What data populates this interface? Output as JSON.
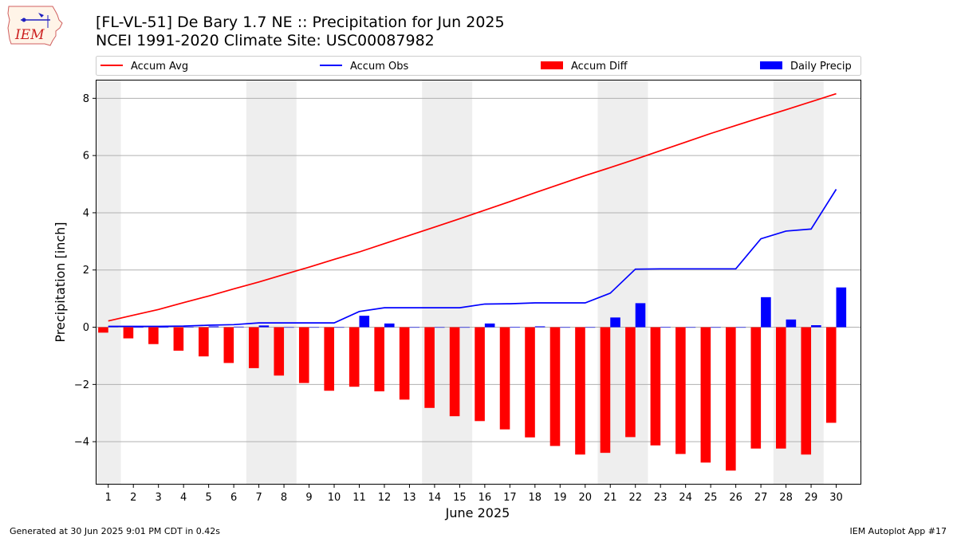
{
  "header": {
    "title_line1": "[FL-VL-51] De Bary 1.7 NE :: Precipitation for Jun 2025",
    "title_line2": "NCEI 1991-2020 Climate Site: USC00087982"
  },
  "logo": {
    "text": "IEM"
  },
  "footer": {
    "generated": "Generated at 30 Jun 2025 9:01 PM CDT in 0.42s",
    "app": "IEM Autoplot App #17"
  },
  "chart_data": {
    "type": "bar",
    "xlabel": "June 2025",
    "ylabel": "Precipitation [inch]",
    "ylim": [
      -5.5,
      8.65
    ],
    "yticks": [
      -4,
      -2,
      0,
      2,
      4,
      6,
      8
    ],
    "grid": "horizontal",
    "legend_placement": "top",
    "categories": [
      "1",
      "2",
      "3",
      "4",
      "5",
      "6",
      "7",
      "8",
      "9",
      "10",
      "11",
      "12",
      "13",
      "14",
      "15",
      "16",
      "17",
      "18",
      "19",
      "20",
      "21",
      "22",
      "23",
      "24",
      "25",
      "26",
      "27",
      "28",
      "29",
      "30"
    ],
    "weekend_shading": [
      [
        1,
        1
      ],
      [
        7,
        8
      ],
      [
        14,
        15
      ],
      [
        21,
        22
      ],
      [
        28,
        29
      ]
    ],
    "series": [
      {
        "name": "Accum Avg",
        "kind": "line",
        "color": "#ff0000",
        "values": [
          0.22,
          0.42,
          0.62,
          0.86,
          1.09,
          1.34,
          1.58,
          1.84,
          2.1,
          2.37,
          2.63,
          2.92,
          3.21,
          3.5,
          3.79,
          4.09,
          4.39,
          4.7,
          5.0,
          5.3,
          5.58,
          5.87,
          6.17,
          6.47,
          6.77,
          7.05,
          7.33,
          7.6,
          7.88,
          8.16
        ]
      },
      {
        "name": "Accum Obs",
        "kind": "line",
        "color": "#0000ff",
        "values": [
          0.03,
          0.03,
          0.03,
          0.04,
          0.07,
          0.09,
          0.15,
          0.15,
          0.15,
          0.15,
          0.55,
          0.68,
          0.68,
          0.68,
          0.68,
          0.81,
          0.82,
          0.85,
          0.85,
          0.85,
          1.19,
          2.03,
          2.04,
          2.04,
          2.04,
          2.04,
          3.09,
          3.36,
          3.43,
          4.82
        ]
      },
      {
        "name": "Accum Diff",
        "kind": "bar",
        "color": "#ff0000",
        "offset": -0.2,
        "values": [
          -0.19,
          -0.39,
          -0.59,
          -0.82,
          -1.02,
          -1.25,
          -1.43,
          -1.69,
          -1.95,
          -2.22,
          -2.08,
          -2.24,
          -2.53,
          -2.82,
          -3.11,
          -3.28,
          -3.57,
          -3.85,
          -4.15,
          -4.45,
          -4.39,
          -3.84,
          -4.13,
          -4.43,
          -4.73,
          -5.01,
          -4.24,
          -4.24,
          -4.45,
          -3.34
        ]
      },
      {
        "name": "Daily Precip",
        "kind": "bar",
        "color": "#0000ff",
        "offset": 0.2,
        "values": [
          0.03,
          0.0,
          0.0,
          0.01,
          0.03,
          0.02,
          0.06,
          0.0,
          0.0,
          0.0,
          0.4,
          0.13,
          0.0,
          0.0,
          0.0,
          0.13,
          0.01,
          0.03,
          0.0,
          0.0,
          0.34,
          0.84,
          0.01,
          0.0,
          0.0,
          0.0,
          1.05,
          0.27,
          0.07,
          1.39
        ]
      }
    ]
  }
}
